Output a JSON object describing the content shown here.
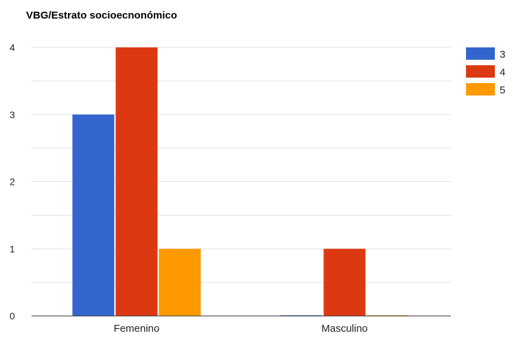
{
  "chart_data": {
    "type": "bar",
    "title": "VBG/Estrato socioecnonómico",
    "xlabel": "",
    "ylabel": "",
    "categories": [
      "Femenino",
      "Masculino"
    ],
    "series": [
      {
        "name": "3",
        "values": [
          3,
          0
        ],
        "color": "#3366cc"
      },
      {
        "name": "4",
        "values": [
          4,
          1
        ],
        "color": "#dc3912"
      },
      {
        "name": "5",
        "values": [
          1,
          0
        ],
        "color": "#ff9900"
      }
    ],
    "ylim": [
      0,
      4
    ],
    "yticks": [
      "0",
      "1",
      "2",
      "3",
      "4"
    ],
    "grid": true,
    "legend_position": "right"
  }
}
